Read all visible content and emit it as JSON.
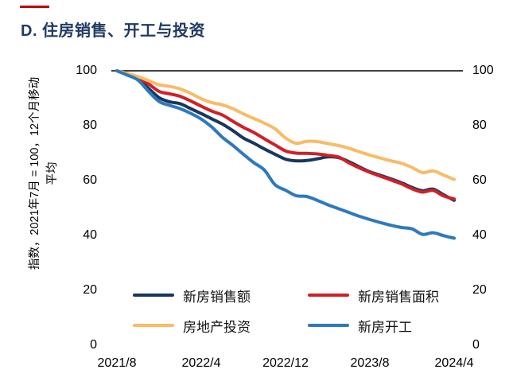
{
  "page": {
    "accent_color": "#c00000",
    "title_color": "#1f3a63"
  },
  "chart_data": {
    "type": "line",
    "title": "D. 住房销售、开工与投资",
    "ylabel": "指数，2021年7月 = 100，12个月移动平均",
    "ylim": [
      0,
      100
    ],
    "y_ticks": [
      0,
      20,
      40,
      60,
      80,
      100
    ],
    "x_tick_labels": [
      "2021/8",
      "2022/4",
      "2022/12",
      "2023/8",
      "2024/4"
    ],
    "x_tick_months": [
      0,
      8,
      16,
      24,
      32
    ],
    "x_start": "2021/8",
    "x_end": "2024/4",
    "x_interval": "monthly",
    "grid": "off",
    "top_axis_line": true,
    "legend_position": "bottom-inside",
    "series": [
      {
        "name": "新房销售额",
        "color": "#17375e",
        "values": [
          100,
          98.6,
          97.0,
          93.6,
          90.2,
          88.7,
          88.0,
          86.2,
          84.4,
          82.5,
          80.6,
          78.2,
          75.5,
          73.6,
          71.5,
          69.6,
          67.8,
          67.2,
          67.3,
          67.9,
          68.6,
          68.4,
          66.9,
          65.0,
          63.2,
          61.9,
          60.6,
          59.2,
          57.5,
          56.3,
          56.9,
          54.8,
          52.8
        ]
      },
      {
        "name": "新房销售面积",
        "color": "#d02026",
        "values": [
          100,
          98.8,
          97.5,
          95.2,
          92.5,
          91.6,
          90.7,
          89.0,
          87.1,
          85.3,
          83.9,
          81.6,
          79.4,
          77.5,
          75.2,
          73.0,
          70.8,
          70.0,
          69.9,
          69.7,
          69.2,
          68.6,
          66.5,
          64.6,
          63.0,
          61.6,
          60.2,
          58.8,
          57.0,
          55.8,
          56.4,
          54.4,
          53.3
        ]
      },
      {
        "name": "房地产投资",
        "color": "#f9bb66",
        "values": [
          100,
          99.0,
          97.9,
          96.4,
          94.9,
          94.3,
          93.4,
          91.8,
          89.8,
          88.4,
          87.6,
          86.2,
          84.3,
          82.6,
          80.9,
          78.9,
          75.5,
          73.6,
          74.3,
          74.2,
          73.5,
          72.8,
          71.8,
          70.5,
          69.3,
          68.2,
          67.2,
          66.3,
          64.8,
          62.9,
          63.5,
          62.0,
          60.4
        ]
      },
      {
        "name": "新房开工",
        "color": "#2e79bd",
        "values": [
          100,
          98.4,
          96.6,
          92.5,
          88.8,
          87.4,
          86.2,
          84.5,
          82.4,
          79.5,
          75.8,
          72.8,
          69.6,
          66.5,
          63.8,
          58.5,
          56.5,
          54.5,
          54.2,
          52.8,
          51.2,
          49.8,
          48.4,
          47.0,
          45.8,
          44.7,
          43.7,
          42.9,
          42.4,
          40.4,
          41.0,
          39.9,
          39.0
        ]
      }
    ]
  }
}
